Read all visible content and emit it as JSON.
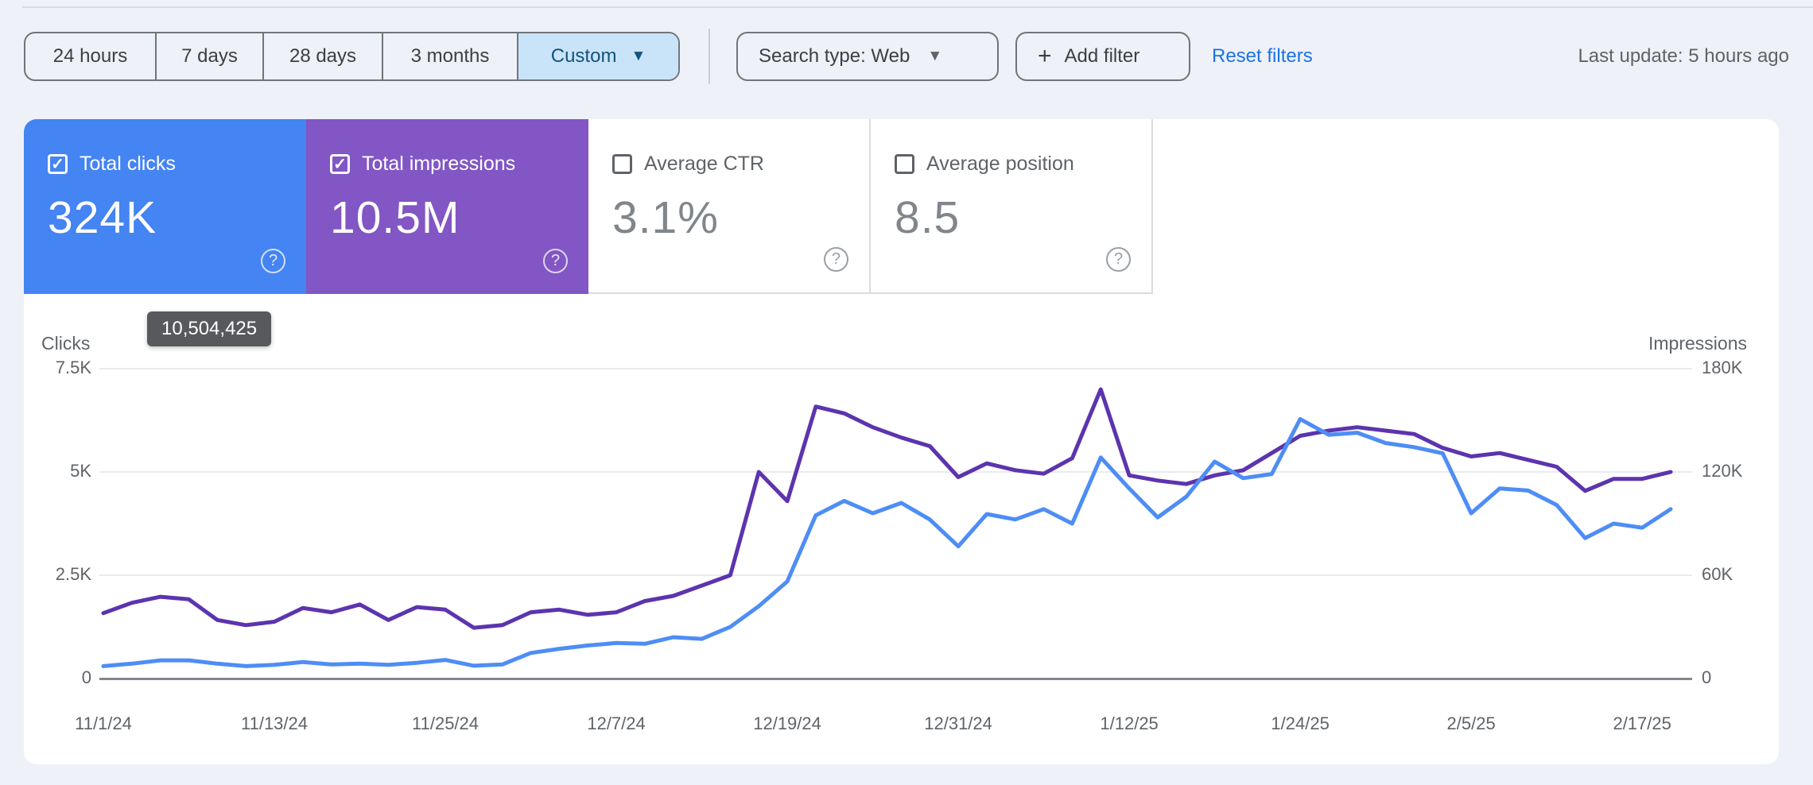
{
  "toolbar": {
    "ranges": [
      {
        "label": "24 hours",
        "selected": false
      },
      {
        "label": "7 days",
        "selected": false
      },
      {
        "label": "28 days",
        "selected": false
      },
      {
        "label": "3 months",
        "selected": false
      },
      {
        "label": "Custom",
        "selected": true
      }
    ],
    "search_type_label": "Search type: Web",
    "add_filter_label": "Add filter",
    "reset_filters_label": "Reset filters",
    "last_update_label": "Last update: 5 hours ago"
  },
  "metrics": {
    "cards": [
      {
        "label": "Total clicks",
        "value": "324K",
        "checked": true,
        "color": "#4484f3"
      },
      {
        "label": "Total impressions",
        "value": "10.5M",
        "checked": true,
        "color": "#8256c4"
      },
      {
        "label": "Average CTR",
        "value": "3.1%",
        "checked": false,
        "color": "#ffffff"
      },
      {
        "label": "Average position",
        "value": "8.5",
        "checked": false,
        "color": "#ffffff"
      }
    ]
  },
  "chart_data": {
    "type": "line",
    "title": "",
    "tooltip_value": "10,504,425",
    "left_axis": {
      "label": "Clicks",
      "ticks": [
        0,
        2500,
        5000,
        7500
      ],
      "tick_labels": [
        "0",
        "2.5K",
        "5K",
        "7.5K"
      ],
      "ylim": [
        0,
        7500
      ]
    },
    "right_axis": {
      "label": "Impressions",
      "ticks": [
        0,
        60000,
        120000,
        180000
      ],
      "tick_labels": [
        "0",
        "60K",
        "120K",
        "180K"
      ],
      "ylim": [
        0,
        180000
      ]
    },
    "x": [
      "11/1/24",
      "11/3/24",
      "11/5/24",
      "11/7/24",
      "11/9/24",
      "11/11/24",
      "11/13/24",
      "11/15/24",
      "11/17/24",
      "11/19/24",
      "11/21/24",
      "11/23/24",
      "11/25/24",
      "11/27/24",
      "11/29/24",
      "12/1/24",
      "12/3/24",
      "12/5/24",
      "12/7/24",
      "12/9/24",
      "12/11/24",
      "12/13/24",
      "12/15/24",
      "12/17/24",
      "12/19/24",
      "12/21/24",
      "12/23/24",
      "12/25/24",
      "12/27/24",
      "12/29/24",
      "12/31/24",
      "1/2/25",
      "1/4/25",
      "1/6/25",
      "1/8/25",
      "1/10/25",
      "1/12/25",
      "1/14/25",
      "1/16/25",
      "1/18/25",
      "1/20/25",
      "1/22/25",
      "1/24/25",
      "1/26/25",
      "1/28/25",
      "1/30/25",
      "2/1/25",
      "2/3/25",
      "2/5/25",
      "2/7/25",
      "2/9/25",
      "2/11/25",
      "2/13/25",
      "2/15/25",
      "2/17/25",
      "2/19/25"
    ],
    "x_tick_labels": [
      "11/1/24",
      "11/13/24",
      "11/25/24",
      "12/7/24",
      "12/19/24",
      "12/31/24",
      "1/12/25",
      "1/24/25",
      "2/5/25",
      "2/17/25"
    ],
    "x_tick_indices": [
      0,
      6,
      12,
      18,
      24,
      30,
      36,
      42,
      48,
      54
    ],
    "series": [
      {
        "name": "Clicks",
        "axis": "left",
        "color": "#4e8df5",
        "values": [
          300,
          360,
          440,
          440,
          360,
          300,
          330,
          400,
          340,
          360,
          330,
          380,
          450,
          310,
          340,
          620,
          720,
          800,
          860,
          840,
          1000,
          960,
          1250,
          1750,
          2350,
          3950,
          4300,
          4000,
          4250,
          3850,
          3200,
          3980,
          3850,
          4100,
          3750,
          5350,
          4600,
          3900,
          4400,
          5250,
          4850,
          4950,
          6280,
          5900,
          5950,
          5700,
          5600,
          5450,
          4000,
          4600,
          4550,
          4200,
          3400,
          3750,
          3650,
          4100
        ]
      },
      {
        "name": "Impressions",
        "axis": "right",
        "color": "#5c34ae",
        "values": [
          38000,
          44000,
          47500,
          46000,
          34000,
          31000,
          33000,
          41000,
          38500,
          43000,
          34000,
          41500,
          40000,
          29500,
          31000,
          38500,
          40000,
          37000,
          38500,
          45000,
          48000,
          54000,
          60000,
          120000,
          103000,
          158000,
          154000,
          146000,
          140000,
          135000,
          117000,
          125000,
          121000,
          119000,
          128000,
          168000,
          118000,
          115000,
          113000,
          118000,
          121000,
          131000,
          141000,
          144000,
          146000,
          144000,
          142000,
          134000,
          129000,
          131000,
          127000,
          123000,
          109000,
          116000,
          116000,
          120000
        ]
      }
    ],
    "grid": true,
    "legend_position": "none"
  }
}
